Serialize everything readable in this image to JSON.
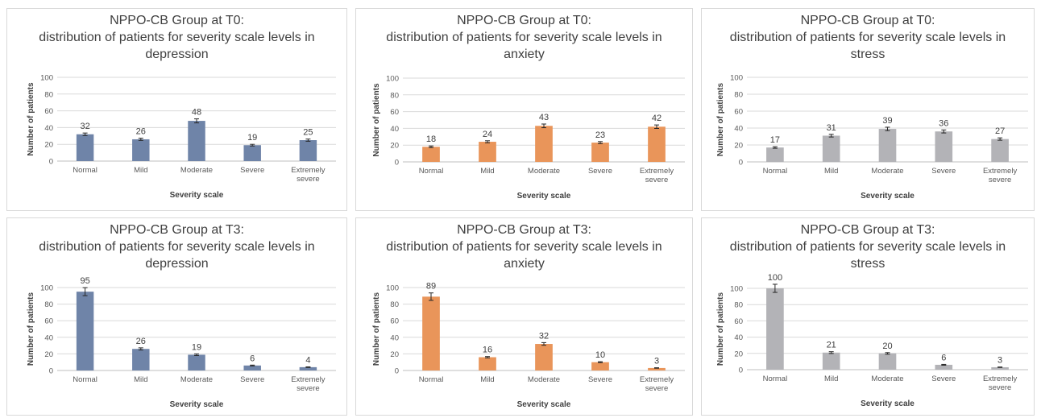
{
  "chart_data": [
    {
      "type": "bar",
      "title": "NPPO-CB Group at T0:",
      "subtitle": [
        "distribution of patients for severity scale levels in",
        "depression"
      ],
      "categories": [
        [
          "Normal"
        ],
        [
          "Mild"
        ],
        [
          "Moderate"
        ],
        [
          "Severe"
        ],
        [
          "Extremely",
          "severe"
        ]
      ],
      "values": [
        32,
        26,
        48,
        19,
        25
      ],
      "error_bars": [
        1.5,
        1.3,
        2.4,
        1.0,
        1.3
      ],
      "xlabel": "Severity scale",
      "ylabel": "Number of patients",
      "ylim": [
        0,
        100
      ],
      "yticks": [
        0,
        20,
        40,
        60,
        80,
        100
      ],
      "grid": true,
      "color": "#6f84a8"
    },
    {
      "type": "bar",
      "title": "NPPO-CB Group at T0:",
      "subtitle": [
        "distribution of patients for severity scale levels in",
        "anxiety"
      ],
      "categories": [
        [
          "Normal"
        ],
        [
          "Mild"
        ],
        [
          "Moderate"
        ],
        [
          "Severe"
        ],
        [
          "Extremely",
          "severe"
        ]
      ],
      "values": [
        18,
        24,
        43,
        23,
        42
      ],
      "error_bars": [
        1.0,
        1.2,
        2.2,
        1.2,
        2.1
      ],
      "xlabel": "Severity scale",
      "ylabel": "Number of patients",
      "ylim": [
        0,
        100
      ],
      "yticks": [
        0,
        20,
        40,
        60,
        80,
        100
      ],
      "grid": true,
      "color": "#e9955a"
    },
    {
      "type": "bar",
      "title": "NPPO-CB Group at T0:",
      "subtitle": [
        "distribution of patients for severity scale levels in",
        "stress"
      ],
      "categories": [
        [
          "Normal"
        ],
        [
          "Mild"
        ],
        [
          "Moderate"
        ],
        [
          "Severe"
        ],
        [
          "Extremely",
          "severe"
        ]
      ],
      "values": [
        17,
        31,
        39,
        36,
        27
      ],
      "error_bars": [
        0.9,
        1.6,
        2.0,
        1.8,
        1.4
      ],
      "xlabel": "Severity scale",
      "ylabel": "Number of patients",
      "ylim": [
        0,
        100
      ],
      "yticks": [
        0,
        20,
        40,
        60,
        80,
        100
      ],
      "grid": true,
      "color": "#b3b3b7"
    },
    {
      "type": "bar",
      "title": "NPPO-CB Group at T3:",
      "subtitle": [
        "distribution of patients for severity scale levels in",
        "depression"
      ],
      "categories": [
        [
          "Normal"
        ],
        [
          "Mild"
        ],
        [
          "Moderate"
        ],
        [
          "Severe"
        ],
        [
          "Extremely",
          "severe"
        ]
      ],
      "values": [
        95,
        26,
        19,
        6,
        4
      ],
      "error_bars": [
        4.8,
        1.3,
        1.0,
        0.5,
        0.4
      ],
      "xlabel": "Severity scale",
      "ylabel": "Number of patients",
      "ylim": [
        0,
        100
      ],
      "yticks": [
        0,
        20,
        40,
        60,
        80,
        100
      ],
      "grid": true,
      "color": "#6f84a8"
    },
    {
      "type": "bar",
      "title": "NPPO-CB Group at T3:",
      "subtitle": [
        "distribution of patients for severity scale levels in",
        "anxiety"
      ],
      "categories": [
        [
          "Normal"
        ],
        [
          "Mild"
        ],
        [
          "Moderate"
        ],
        [
          "Severe"
        ],
        [
          "Extremely",
          "severe"
        ]
      ],
      "values": [
        89,
        16,
        32,
        10,
        3
      ],
      "error_bars": [
        4.5,
        0.8,
        1.6,
        0.6,
        0.3
      ],
      "xlabel": "Severity scale",
      "ylabel": "Number of patients",
      "ylim": [
        0,
        100
      ],
      "yticks": [
        0,
        20,
        40,
        60,
        80,
        100
      ],
      "grid": true,
      "color": "#e9955a"
    },
    {
      "type": "bar",
      "title": "NPPO-CB Group at T3:",
      "subtitle": [
        "distribution of patients for severity scale levels in",
        "stress"
      ],
      "categories": [
        [
          "Normal"
        ],
        [
          "Mild"
        ],
        [
          "Moderate"
        ],
        [
          "Severe"
        ],
        [
          "Extremely",
          "severe"
        ]
      ],
      "values": [
        100,
        21,
        20,
        6,
        3
      ],
      "error_bars": [
        5.0,
        1.1,
        1.0,
        0.5,
        0.3
      ],
      "xlabel": "Severity scale",
      "ylabel": "Number of patients",
      "ylim": [
        0,
        100
      ],
      "yticks": [
        0,
        20,
        40,
        60,
        80,
        100
      ],
      "grid": true,
      "color": "#b3b3b7"
    }
  ]
}
